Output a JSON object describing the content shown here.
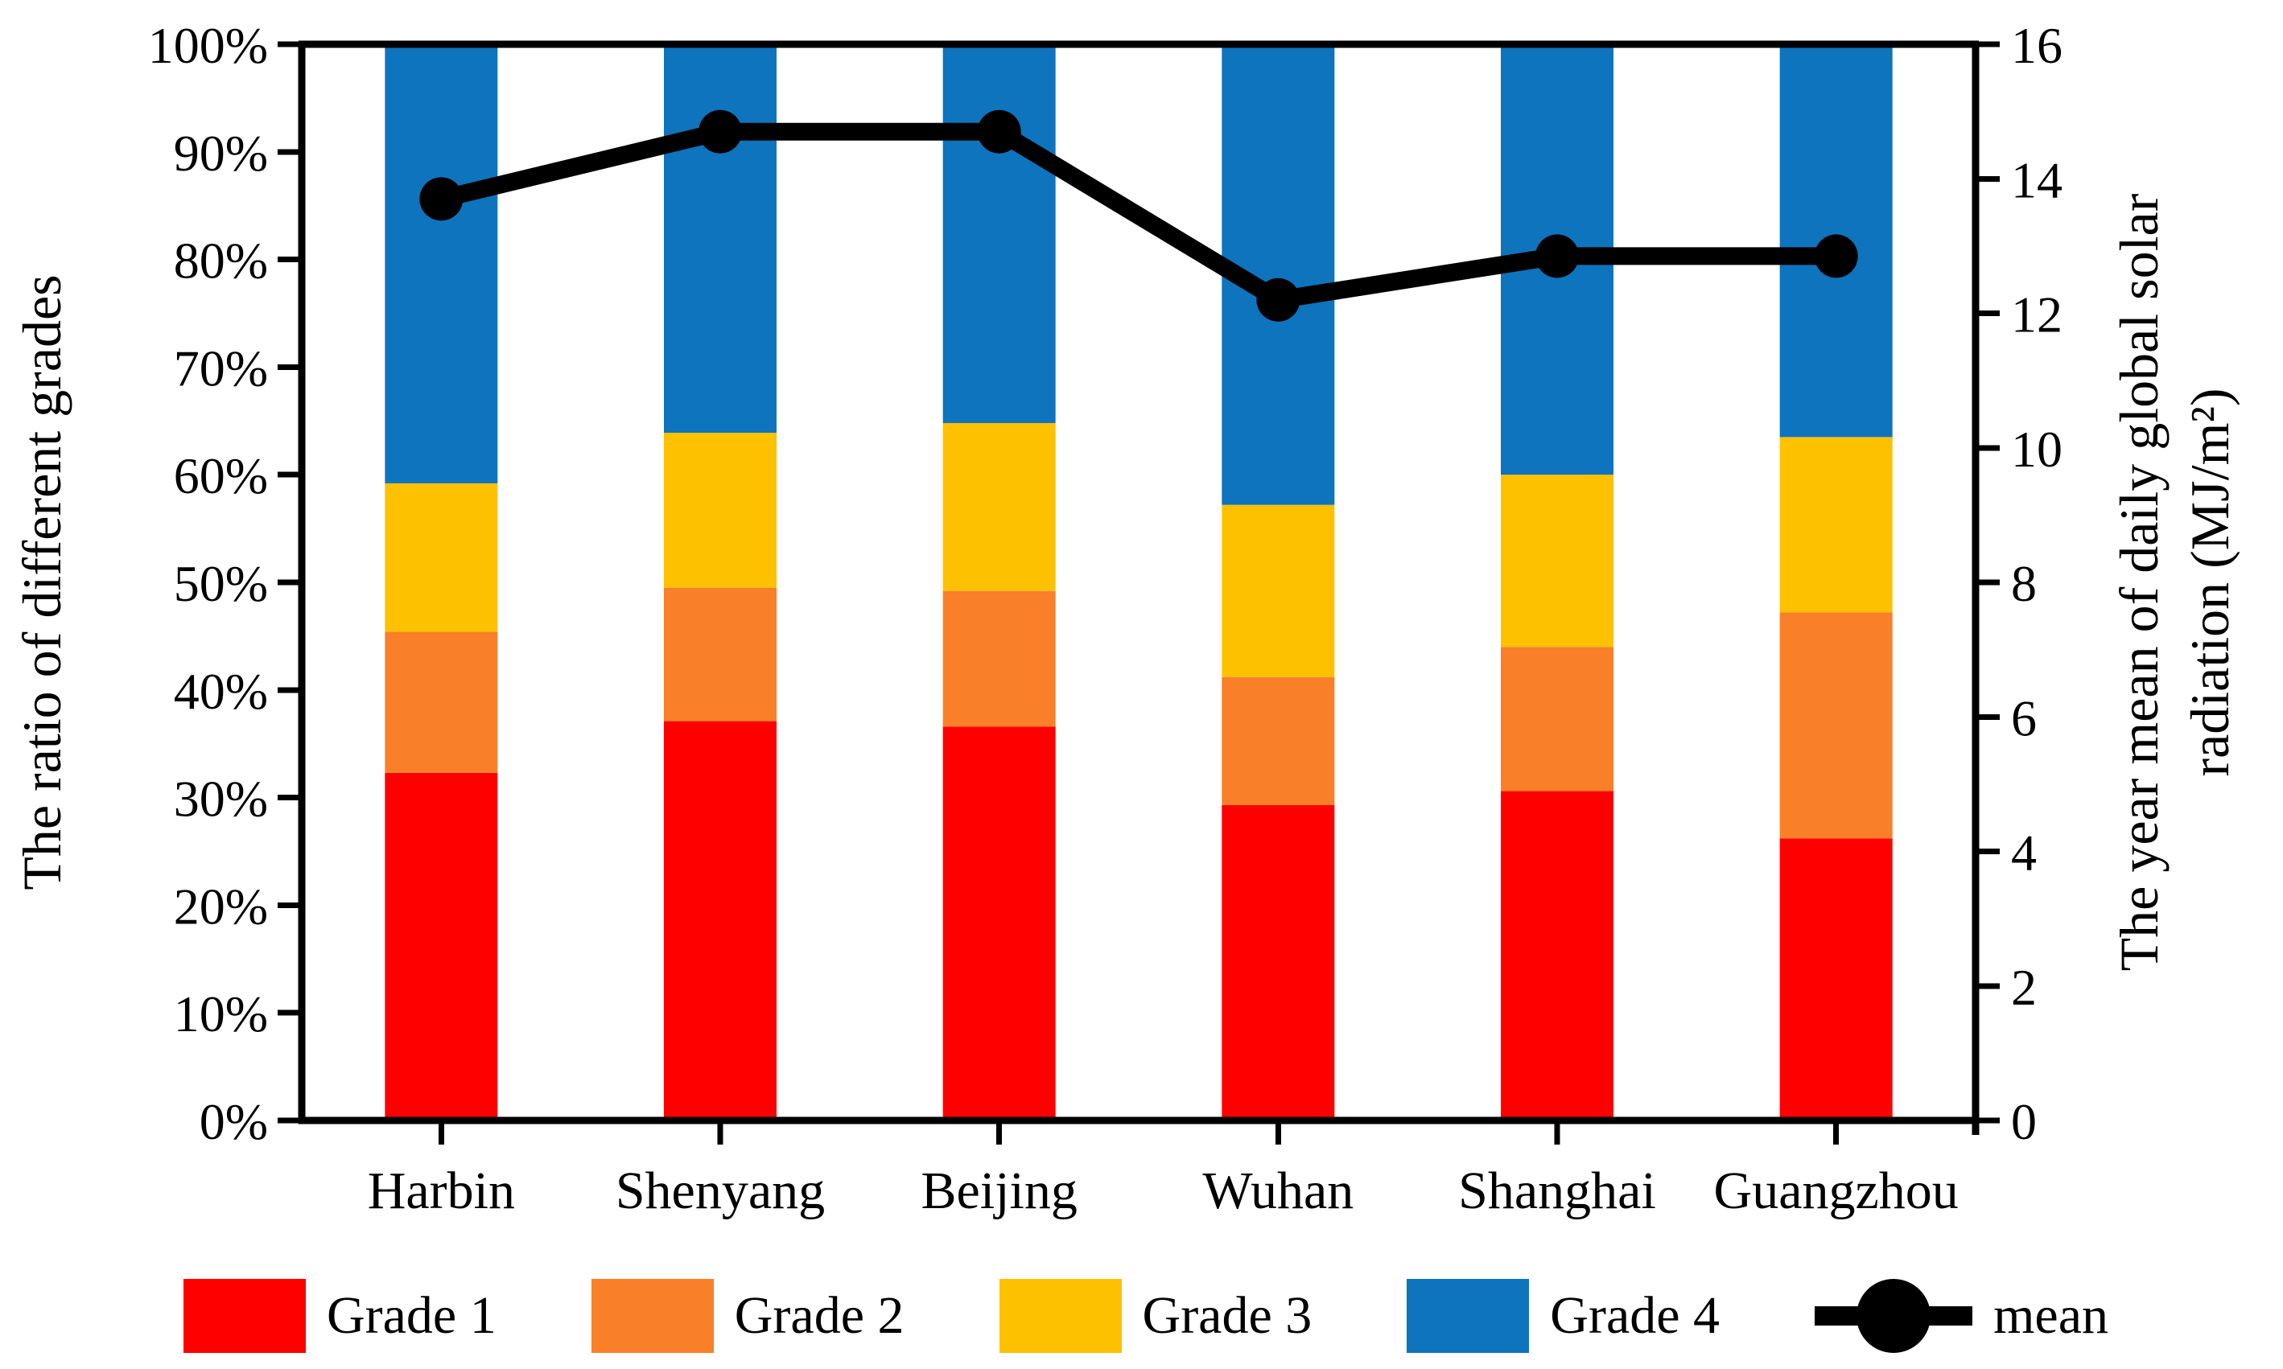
{
  "chart_data": {
    "type": "bar",
    "subtype": "stacked-percent-bars-with-line-on-secondary-axis",
    "categories": [
      "Harbin",
      "Shenyang",
      "Beijing",
      "Wuhan",
      "Shanghai",
      "Guangzhou"
    ],
    "series": [
      {
        "name": "Grade 1",
        "color": "#FE0000",
        "values": [
          32.3,
          37.1,
          36.6,
          29.3,
          30.6,
          26.2
        ]
      },
      {
        "name": "Grade 2",
        "color": "#F97F28",
        "values": [
          13.1,
          12.4,
          12.6,
          11.9,
          13.4,
          21.0
        ]
      },
      {
        "name": "Grade 3",
        "color": "#FEC100",
        "values": [
          13.8,
          14.4,
          15.6,
          16.0,
          16.0,
          16.3
        ]
      },
      {
        "name": "Grade 4",
        "color": "#0E74BD",
        "values": [
          40.8,
          36.1,
          35.2,
          42.8,
          40.0,
          36.5
        ]
      }
    ],
    "line_series": {
      "name": "mean",
      "color": "#000000",
      "axis": "right",
      "values": [
        13.7,
        14.7,
        14.7,
        12.2,
        12.85,
        12.85
      ]
    },
    "left_axis": {
      "title": "The ratio of different grades",
      "min": 0,
      "max": 100,
      "tick_labels": [
        "0%",
        "10%",
        "20%",
        "30%",
        "40%",
        "50%",
        "60%",
        "70%",
        "80%",
        "90%",
        "100%"
      ]
    },
    "right_axis": {
      "title_line1": "The year mean of daily global solar",
      "title_line2": "radiation (MJ/m²)",
      "min": 0,
      "max": 16,
      "tick_labels": [
        "0",
        "2",
        "4",
        "6",
        "8",
        "10",
        "12",
        "14",
        "16"
      ]
    },
    "legend_labels": [
      "Grade 1",
      "Grade 2",
      "Grade 3",
      "Grade 4",
      "mean"
    ],
    "grid": "off",
    "legend_position": "bottom"
  }
}
